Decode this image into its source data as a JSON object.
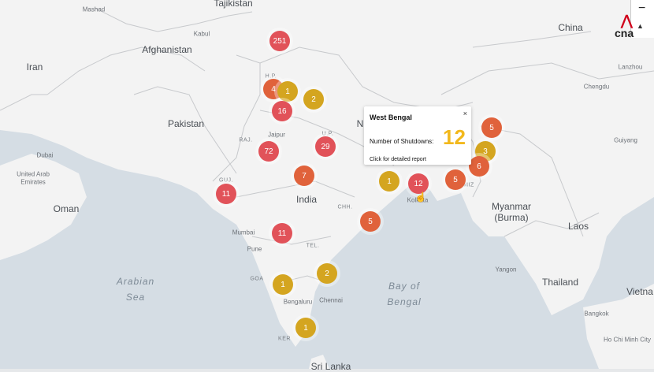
{
  "colors": {
    "land": "#f3f3f3",
    "water": "#d5dde4",
    "border": "#c7c9cc",
    "marker_red": "#e15259",
    "marker_orange": "#e0623b",
    "marker_gold": "#d4a520",
    "popup_value": "#f2b81c"
  },
  "labels": {
    "tajikistan": "Tajikistan",
    "mashad": "Mashad",
    "afghanistan": "Afghanistan",
    "kabul": "Kabul",
    "iran": "Iran",
    "pakistan": "Pakistan",
    "jaipur": "Jaipur",
    "raj": "RAJ.",
    "dubai": "Dubai",
    "uae": "United Arab",
    "emirates": "Emirates",
    "oman": "Oman",
    "india": "India",
    "chh": "CHH.",
    "mumbai": "Mumbai",
    "pune": "Pune",
    "tel": "TEL.",
    "goa": "GOA",
    "bengaluru": "Bengaluru",
    "chennai": "Chennai",
    "ker": "KER",
    "sri_lanka": "Sri Lanka",
    "arabian_sea_1": "Arabian",
    "arabian_sea_2": "Sea",
    "bay_1": "Bay of",
    "bay_2": "Bengal",
    "hp": "H.P.",
    "up": "U.P.",
    "n": "N",
    "guj": "GUJ.",
    "kolkata": "Kolkata",
    "myanmar_1": "Myanmar",
    "myanmar_2": "(Burma)",
    "china": "China",
    "chengdu": "Chengdu",
    "guiyang": "Guiyang",
    "laos": "Laos",
    "thailand": "Thailand",
    "yangon": "Yangon",
    "bangkok": "Bangkok",
    "vietnam": "Vietna",
    "hcm": "Ho Chi Minh City",
    "lanzhou": "Lanzhou",
    "miz": "MIZ"
  },
  "markers": [
    {
      "name": "marker-jammu-kashmir",
      "count": "251",
      "color": "#e15259"
    },
    {
      "name": "marker-punjab",
      "count": "4",
      "color": "#e0623b"
    },
    {
      "name": "marker-himachal",
      "count": "1",
      "color": "#d4a520"
    },
    {
      "name": "marker-uttarakhand",
      "count": "2",
      "color": "#d4a520"
    },
    {
      "name": "marker-haryana",
      "count": "16",
      "color": "#e15259"
    },
    {
      "name": "marker-rajasthan",
      "count": "72",
      "color": "#e15259"
    },
    {
      "name": "marker-uttar-pradesh",
      "count": "29",
      "color": "#e15259"
    },
    {
      "name": "marker-madhya-pradesh",
      "count": "7",
      "color": "#e0623b"
    },
    {
      "name": "marker-gujarat",
      "count": "11",
      "color": "#e15259"
    },
    {
      "name": "marker-maharashtra",
      "count": "11",
      "color": "#e15259"
    },
    {
      "name": "marker-jharkhand",
      "count": "1",
      "color": "#d4a520"
    },
    {
      "name": "marker-west-bengal",
      "count": "12",
      "color": "#e15259"
    },
    {
      "name": "marker-tripura",
      "count": "5",
      "color": "#e0623b"
    },
    {
      "name": "marker-odisha",
      "count": "5",
      "color": "#e0623b"
    },
    {
      "name": "marker-arunachal",
      "count": "5",
      "color": "#e0623b"
    },
    {
      "name": "marker-assam",
      "count": "3",
      "color": "#d4a520"
    },
    {
      "name": "marker-manipur",
      "count": "6",
      "color": "#e0623b"
    },
    {
      "name": "marker-andhra",
      "count": "2",
      "color": "#d4a520"
    },
    {
      "name": "marker-goa",
      "count": "1",
      "color": "#d4a520"
    },
    {
      "name": "marker-tamil-nadu",
      "count": "1",
      "color": "#d4a520"
    }
  ],
  "popup": {
    "title": "West Bengal",
    "close": "×",
    "key": "Number of Shutdowns:",
    "value": "12",
    "link": "Click for detailed report"
  },
  "zoom": {
    "minus": "−",
    "up": "▲"
  },
  "logo": {
    "a": "⋀",
    "b": "cna"
  },
  "cursor": "☝"
}
